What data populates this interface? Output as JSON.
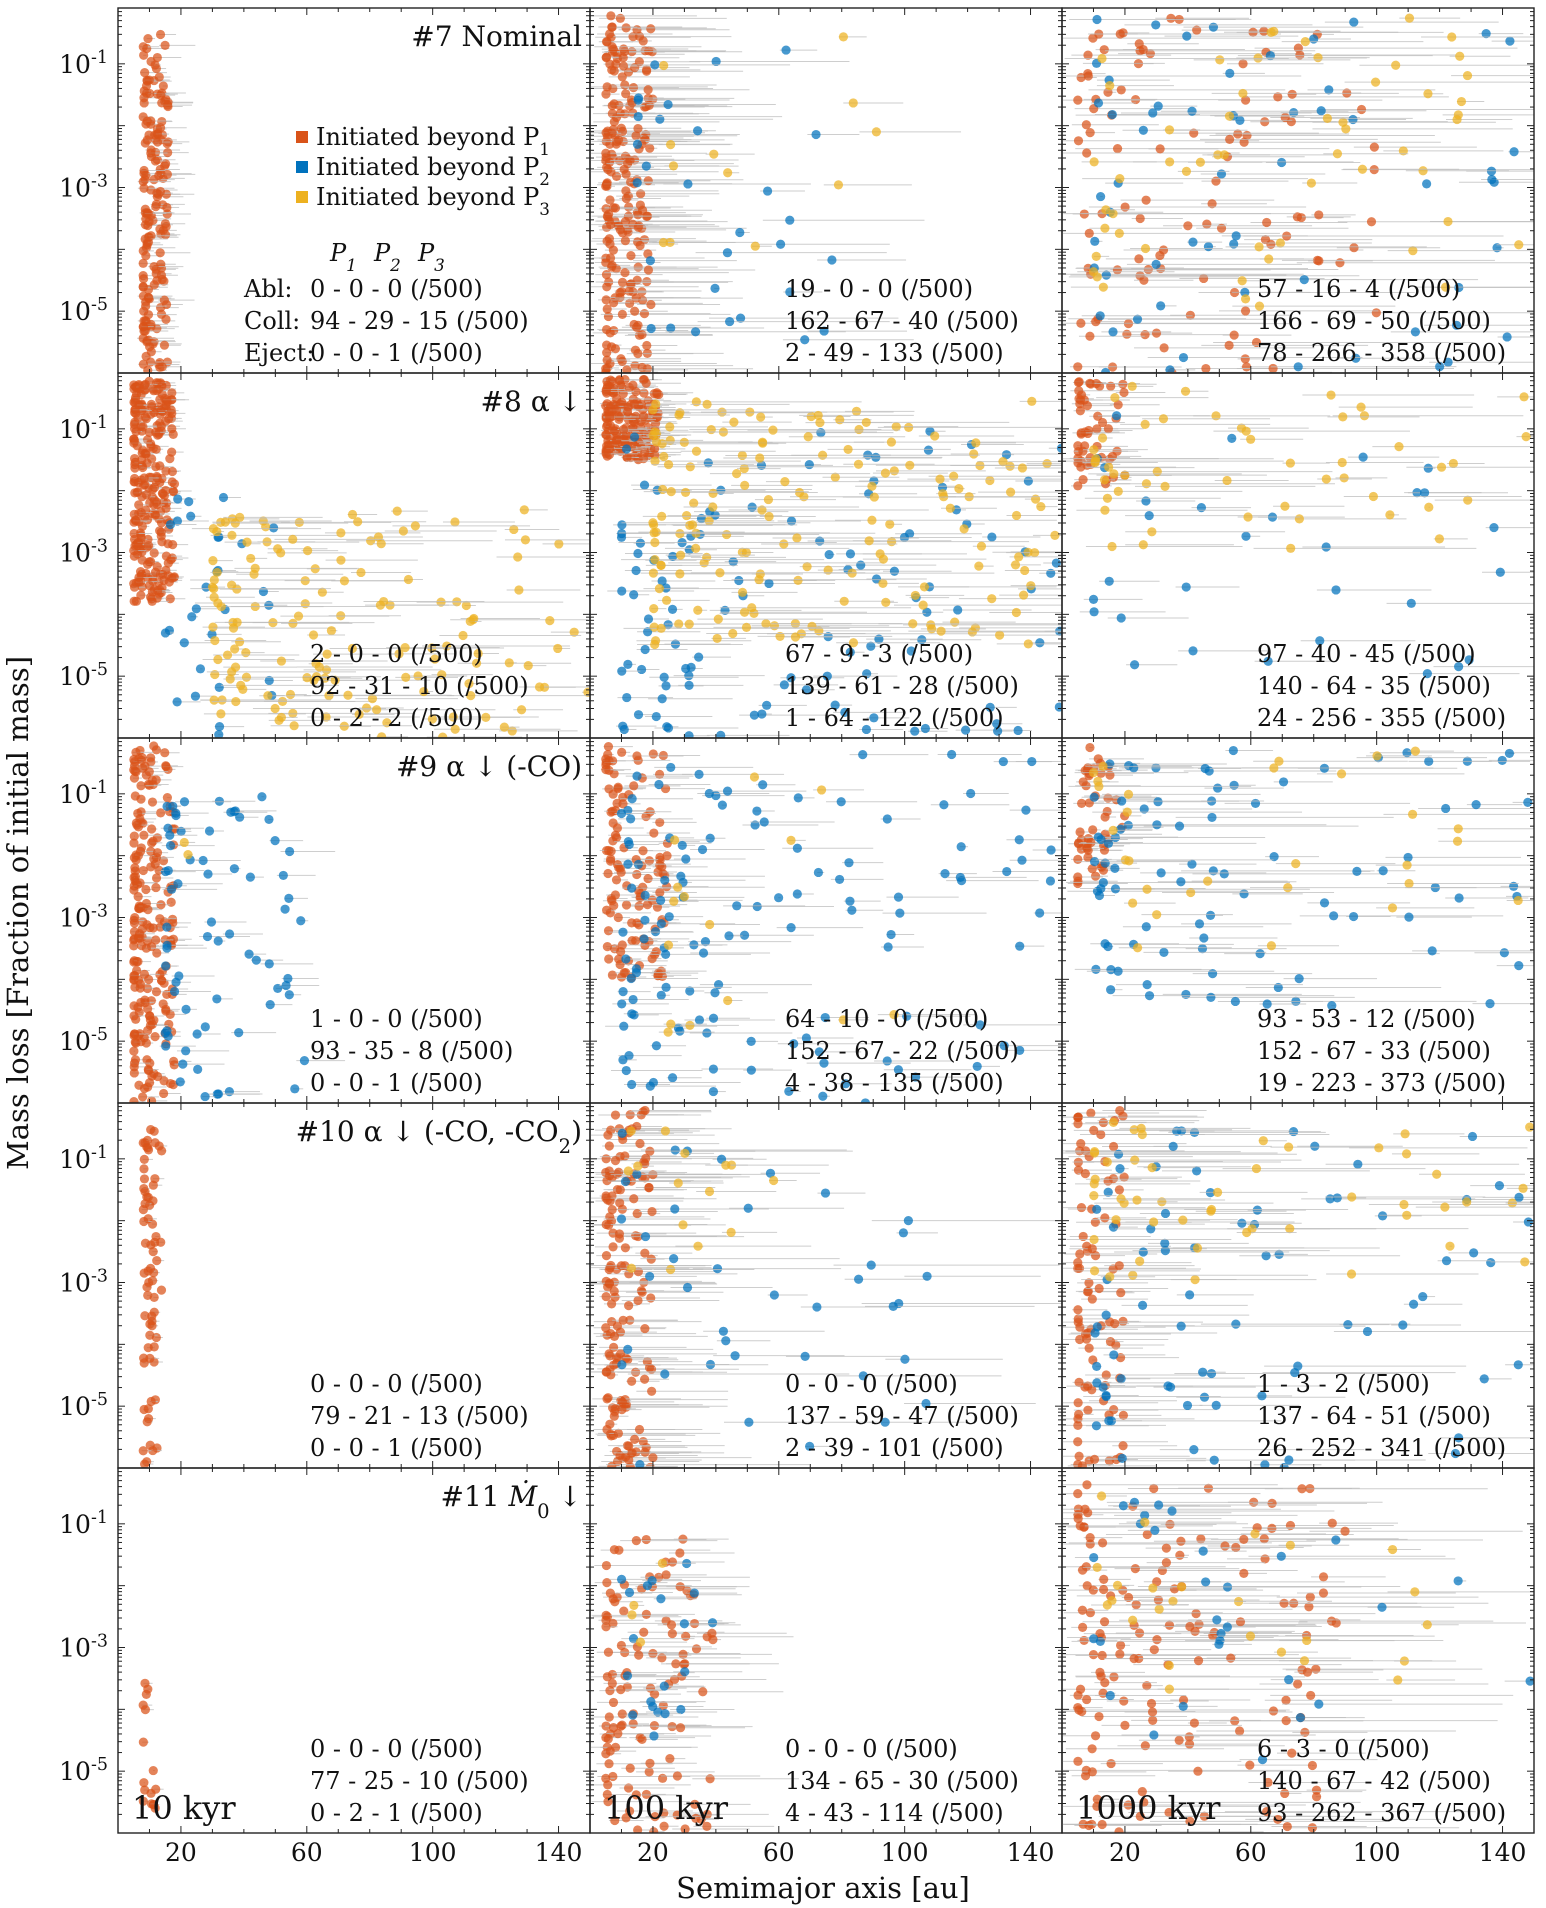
{
  "chart_data": {
    "type": "scatter",
    "xlabel": "Semimajor axis [au]",
    "ylabel": "Mass loss [Fraction of initial mass]",
    "xlim": [
      0,
      150
    ],
    "ylim": [
      1e-06,
      0.8
    ],
    "yscale": "log",
    "x_ticks": [
      20,
      60,
      100,
      140
    ],
    "y_ticks": [
      0.1,
      0.001,
      1e-05
    ],
    "y_tick_labels": [
      "10^{-1}",
      "10^{-3}",
      "10^{-5}"
    ],
    "grid": false,
    "error_bars": "horizontal, light grey",
    "colors": {
      "P1": "#D95319",
      "P2": "#0072BD",
      "P3": "#EDB120"
    },
    "legend": {
      "placement": "upper-middle of first panel",
      "entries": [
        {
          "key": "P1",
          "label": "Initiated beyond P",
          "sub": "1"
        },
        {
          "key": "P2",
          "label": "Initiated beyond P",
          "sub": "2"
        },
        {
          "key": "P3",
          "label": "Initiated beyond P",
          "sub": "3"
        }
      ]
    },
    "count_header": [
      "P",
      "P",
      "P"
    ],
    "count_header_subs": [
      "1",
      "2",
      "3"
    ],
    "count_row_labels": [
      "Abl:",
      "Coll:",
      "Eject:"
    ],
    "columns": [
      "10 kyr",
      "100 kyr",
      "1000 kyr"
    ],
    "runs": [
      {
        "label": "#7 Nominal",
        "counts": [
          [
            "0 - 0 - 0 (/500)",
            "94 - 29 - 15 (/500)",
            "0 - 0 - 1 (/500)"
          ],
          [
            "19 - 0 - 0 (/500)",
            "162 - 67 - 40 (/500)",
            "2 - 49 - 133 (/500)"
          ],
          [
            "57 - 16 - 4 (/500)",
            "166 - 69 - 50 (/500)",
            "78 - 266 - 358 (/500)"
          ]
        ]
      },
      {
        "label": "#8 α ↓",
        "counts": [
          [
            "2 - 0 - 0 (/500)",
            "92 - 31 - 10 (/500)",
            "0 - 2 - 2 (/500)"
          ],
          [
            "67 - 9 - 3 (/500)",
            "139 - 61 - 28 (/500)",
            "1 - 64 - 122 (/500)"
          ],
          [
            "97 - 40 - 45 (/500)",
            "140 - 64 - 35 (/500)",
            "24 - 256 - 355 (/500)"
          ]
        ]
      },
      {
        "label": "#9 α ↓ (-CO)",
        "counts": [
          [
            "1 - 0 - 0 (/500)",
            "93 - 35 - 8 (/500)",
            "0 - 0 - 1 (/500)"
          ],
          [
            "64 - 10 - 0 (/500)",
            "152 - 67 - 22 (/500)",
            "4 - 38 - 135 (/500)"
          ],
          [
            "93 - 53 - 12 (/500)",
            "152 - 67 - 33 (/500)",
            "19 - 223 - 373 (/500)"
          ]
        ]
      },
      {
        "label": "#10 α ↓ (-CO, -CO",
        "label_sub": "2",
        "label_tail": ")",
        "counts": [
          [
            "0 - 0 - 0 (/500)",
            "79 - 21 - 13 (/500)",
            "0 - 0 - 1 (/500)"
          ],
          [
            "0 - 0 - 0 (/500)",
            "137 - 59 - 47 (/500)",
            "2 - 39 - 101 (/500)"
          ],
          [
            "1 - 3 - 2 (/500)",
            "137 - 64 - 51 (/500)",
            "26 - 252 - 341 (/500)"
          ]
        ]
      },
      {
        "label": "#11",
        "label_math": "Ṁ",
        "label_sub": "0",
        "label_tail": " ↓",
        "counts": [
          [
            "0 - 0 - 0 (/500)",
            "77 - 25 - 10 (/500)",
            "0 - 2 - 1 (/500)"
          ],
          [
            "0 - 0 - 0 (/500)",
            "134 - 65 - 30 (/500)",
            "4 - 43 - 114 (/500)"
          ],
          [
            "6 - 3 - 0 (/500)",
            "140 - 67 - 42 (/500)",
            "93 - 262 - 367 (/500)"
          ]
        ]
      }
    ],
    "clusters": {
      "note": "approximate point clouds (a in au, mass-loss fraction) per panel; each row: [population, count, a_min, a_max, logM_min, logM_max, errbar_max_au]",
      "r0c0": [
        [
          "P1",
          170,
          8,
          16,
          -6,
          -0.5,
          10
        ]
      ],
      "r0c1": [
        [
          "P1",
          220,
          5,
          20,
          -6,
          -0.2,
          35
        ],
        [
          "P2",
          30,
          15,
          80,
          -5.5,
          -0.5,
          55
        ],
        [
          "P3",
          12,
          20,
          100,
          -4,
          -0.5,
          30
        ]
      ],
      "r0c2": [
        [
          "P1",
          110,
          5,
          100,
          -6,
          -0.2,
          70
        ],
        [
          "P2",
          60,
          10,
          150,
          -6,
          -0.2,
          60
        ],
        [
          "P3",
          55,
          10,
          150,
          -5,
          -0.2,
          60
        ]
      ],
      "r1c0": [
        [
          "P1",
          260,
          5,
          18,
          -3.8,
          -0.2,
          6
        ],
        [
          "P2",
          30,
          15,
          50,
          -6,
          -2,
          10
        ],
        [
          "P3",
          150,
          30,
          150,
          -6,
          -2.3,
          40
        ]
      ],
      "r1c1": [
        [
          "P1",
          180,
          5,
          22,
          -1.5,
          -0.2,
          12
        ],
        [
          "P2",
          120,
          10,
          150,
          -6,
          -1,
          25
        ],
        [
          "P3",
          180,
          20,
          150,
          -4.5,
          -0.5,
          60
        ]
      ],
      "r1c2": [
        [
          "P1",
          50,
          5,
          20,
          -2,
          -0.2,
          15
        ],
        [
          "P2",
          30,
          10,
          150,
          -5,
          -0.5,
          40
        ],
        [
          "P3",
          50,
          10,
          150,
          -3,
          -0.2,
          60
        ]
      ],
      "r2c0": [
        [
          "P1",
          220,
          5,
          18,
          -6,
          -0.2,
          6
        ],
        [
          "P2",
          70,
          15,
          60,
          -6,
          -1,
          15
        ],
        [
          "P3",
          2,
          20,
          40,
          -2,
          -1.5,
          5
        ]
      ],
      "r2c1": [
        [
          "P1",
          120,
          5,
          25,
          -4,
          -0.2,
          15
        ],
        [
          "P2",
          130,
          10,
          150,
          -6,
          -0.3,
          30
        ],
        [
          "P3",
          15,
          20,
          100,
          -5,
          -0.5,
          30
        ]
      ],
      "r2c2": [
        [
          "P1",
          50,
          5,
          20,
          -2.5,
          -0.2,
          20
        ],
        [
          "P2",
          90,
          10,
          150,
          -4.5,
          -0.2,
          60
        ],
        [
          "P3",
          30,
          10,
          150,
          -3.5,
          -0.2,
          60
        ]
      ],
      "r3c0": [
        [
          "P1",
          70,
          8,
          14,
          -6,
          -0.5,
          3
        ]
      ],
      "r3c1": [
        [
          "P1",
          160,
          5,
          20,
          -6,
          -0.2,
          35
        ],
        [
          "P2",
          40,
          10,
          110,
          -6,
          -0.5,
          60
        ],
        [
          "P3",
          15,
          10,
          60,
          -3,
          -0.5,
          40
        ]
      ],
      "r3c2": [
        [
          "P1",
          90,
          5,
          20,
          -6,
          -0.2,
          40
        ],
        [
          "P2",
          80,
          10,
          150,
          -6,
          -0.5,
          60
        ],
        [
          "P3",
          50,
          10,
          150,
          -3,
          -0.2,
          60
        ]
      ],
      "r4c0": [
        [
          "P1",
          16,
          8,
          12,
          -6,
          -3.5,
          3
        ]
      ],
      "r4c1": [
        [
          "P1",
          120,
          5,
          40,
          -6,
          -1.2,
          30
        ],
        [
          "P2",
          20,
          10,
          40,
          -4.5,
          -1.5,
          20
        ],
        [
          "P3",
          4,
          10,
          25,
          -3,
          -1.5,
          15
        ]
      ],
      "r4c2": [
        [
          "P1",
          160,
          5,
          90,
          -6,
          -0.3,
          70
        ],
        [
          "P2",
          30,
          10,
          150,
          -5,
          -0.5,
          60
        ],
        [
          "P3",
          25,
          10,
          120,
          -4,
          -0.5,
          60
        ]
      ]
    }
  }
}
